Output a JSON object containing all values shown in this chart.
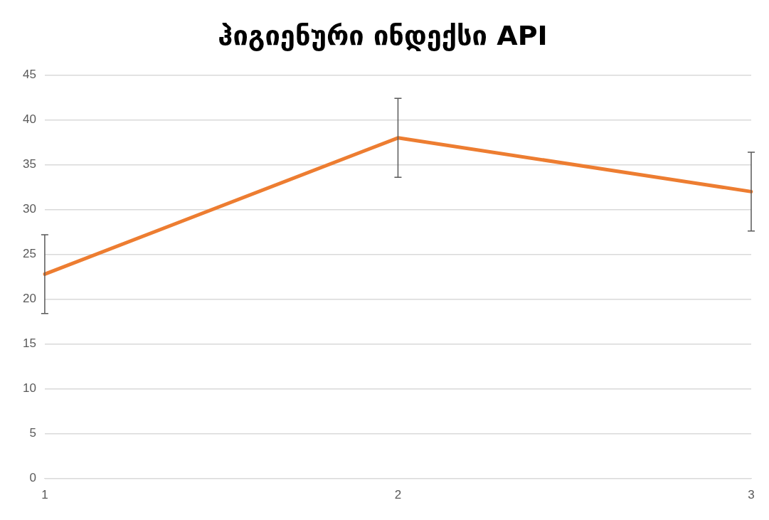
{
  "chart_data": {
    "type": "line",
    "title": "ჰიგიენური ინდექსი API",
    "categories": [
      "1",
      "2",
      "3"
    ],
    "series": [
      {
        "color": "#ed7d31",
        "values": [
          22.8,
          38,
          32
        ],
        "errors": [
          4.4,
          4.4,
          4.4
        ]
      }
    ],
    "ylim": [
      0,
      45
    ],
    "yticks": [
      0,
      5,
      10,
      15,
      20,
      25,
      30,
      35,
      40,
      45
    ],
    "grid": "y",
    "legend": false,
    "marker": "none"
  }
}
